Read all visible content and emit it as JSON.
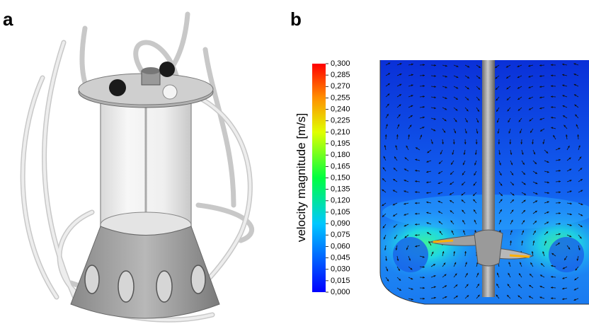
{
  "panels": [
    {
      "label": "a"
    },
    {
      "label": "b",
      "colorbar": {
        "label": "velocity magnitude [m/s]",
        "lim": [
          0,
          0.3
        ],
        "ticks": [
          {
            "value": 0.3,
            "label": "0,300"
          },
          {
            "value": 0.285,
            "label": "0,285"
          },
          {
            "value": 0.27,
            "label": "0,270"
          },
          {
            "value": 0.255,
            "label": "0,255"
          },
          {
            "value": 0.24,
            "label": "0,240"
          },
          {
            "value": 0.225,
            "label": "0,225"
          },
          {
            "value": 0.21,
            "label": "0,210"
          },
          {
            "value": 0.195,
            "label": "0,195"
          },
          {
            "value": 0.18,
            "label": "0,180"
          },
          {
            "value": 0.165,
            "label": "0,165"
          },
          {
            "value": 0.15,
            "label": "0,150"
          },
          {
            "value": 0.135,
            "label": "0,135"
          },
          {
            "value": 0.12,
            "label": "0,120"
          },
          {
            "value": 0.105,
            "label": "0,105"
          },
          {
            "value": 0.09,
            "label": "0,090"
          },
          {
            "value": 0.075,
            "label": "0,075"
          },
          {
            "value": 0.06,
            "label": "0,060"
          },
          {
            "value": 0.045,
            "label": "0,045"
          },
          {
            "value": 0.03,
            "label": "0,030"
          },
          {
            "value": 0.015,
            "label": "0,015"
          },
          {
            "value": 0,
            "label": "0,000"
          }
        ]
      }
    }
  ]
}
